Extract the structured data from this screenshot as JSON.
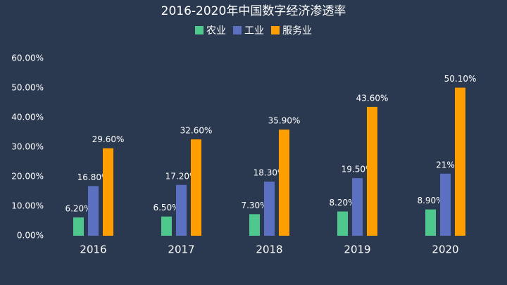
{
  "chart_data": {
    "type": "bar",
    "title": "2016-2020年中国数字经济渗透率",
    "categories": [
      "2016",
      "2017",
      "2018",
      "2019",
      "2020"
    ],
    "series": [
      {
        "name": "农业",
        "color": "#4fc88e",
        "values": [
          6.2,
          6.5,
          7.3,
          8.2,
          8.9
        ],
        "value_labels": [
          "6.20%",
          "6.50%",
          "7.30%",
          "8.20%",
          "8.90%"
        ]
      },
      {
        "name": "工业",
        "color": "#5b70c0",
        "values": [
          16.8,
          17.2,
          18.3,
          19.5,
          21
        ],
        "value_labels": [
          "16.80%",
          "17.20%",
          "18.30%",
          "19.50%",
          "21%"
        ]
      },
      {
        "name": "服务业",
        "color": "#ff9e01",
        "values": [
          29.6,
          32.6,
          35.9,
          43.6,
          50.1
        ],
        "value_labels": [
          "29.60%",
          "32.60%",
          "35.90%",
          "43.60%",
          "50.10%"
        ]
      }
    ],
    "ylim": [
      0,
      60
    ],
    "yticks": [
      {
        "value": 0,
        "label": "0.00%"
      },
      {
        "value": 10,
        "label": "10.00%"
      },
      {
        "value": 20,
        "label": "20.00%"
      },
      {
        "value": 30,
        "label": "30.00%"
      },
      {
        "value": 40,
        "label": "40.00%"
      },
      {
        "value": 50,
        "label": "50.00%"
      },
      {
        "value": 60,
        "label": "60.00%"
      }
    ],
    "grid": false,
    "legend": "top"
  }
}
